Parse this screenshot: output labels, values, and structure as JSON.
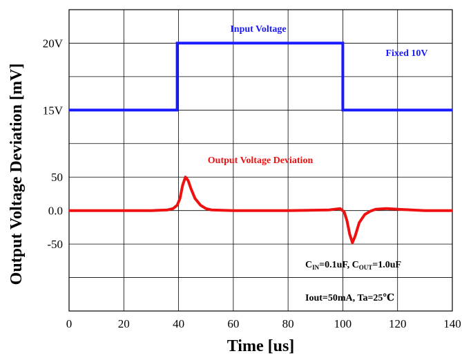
{
  "chart_data": {
    "type": "line",
    "xlabel": "Time [us]",
    "ylabel": "Output Voltage Deviation [mV]",
    "xlim": [
      0,
      140
    ],
    "x_ticks": [
      "0",
      "20",
      "40",
      "60",
      "80",
      "100",
      "120",
      "140"
    ],
    "y_tick_labels": {
      "input_upper": "20V",
      "input_lower": "15V",
      "output_pos": "50",
      "output_zero": "0.0",
      "output_neg": "-50"
    },
    "grid": true,
    "series": [
      {
        "name": "Input Voltage",
        "color": "#1a1aff",
        "unit": "V",
        "x": [
          0,
          39.5,
          39.5,
          100,
          100,
          140
        ],
        "values": [
          15,
          15,
          20,
          20,
          15,
          15
        ]
      },
      {
        "name": "Output Voltage Deviation",
        "color": "#ee1111",
        "unit": "mV",
        "x": [
          0,
          30,
          36,
          38,
          39.5,
          40.5,
          41.5,
          42.5,
          43.5,
          44.5,
          46,
          48,
          50,
          52,
          60,
          80,
          95,
          99,
          100.5,
          101.5,
          102.5,
          103.5,
          104.5,
          106,
          108,
          110,
          112,
          116,
          120,
          130,
          140
        ],
        "values": [
          0,
          0,
          1,
          3,
          8,
          18,
          38,
          50,
          45,
          33,
          18,
          8,
          3,
          1,
          0,
          0,
          1,
          3,
          -2,
          -15,
          -35,
          -48,
          -38,
          -18,
          -6,
          -1,
          2,
          3,
          2,
          0,
          0
        ]
      }
    ],
    "annotations": {
      "input_label": "Input Voltage",
      "fixed_label": "Fixed 10V",
      "output_label": "Output Voltage Deviation",
      "cap_c1": "C",
      "cap_c1_sub": "IN",
      "cap_mid": "=0.1uF, C",
      "cap_c2_sub": "OUT",
      "cap_end": "=1.0uF",
      "conditions": "Iout=50mA, Ta=25℃"
    }
  }
}
